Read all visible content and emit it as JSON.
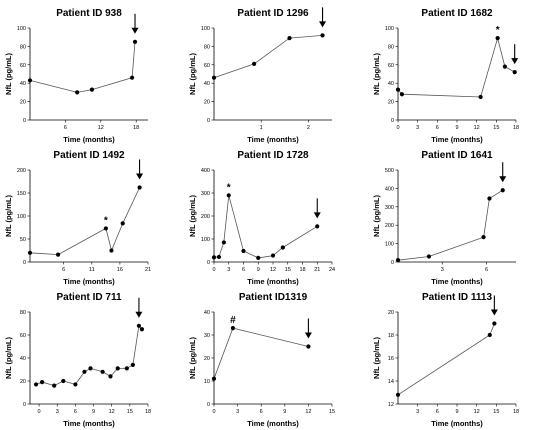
{
  "figure": {
    "panels": [
      {
        "title": "Patient ID 938",
        "xlabel": "Time (months)",
        "ylabel": "NfL (pg/mL)"
      },
      {
        "title": "Patient ID 1296",
        "xlabel": "Time (months)",
        "ylabel": "NfL (pg/mL)"
      },
      {
        "title": "Patient ID 1682",
        "xlabel": "Time (months)",
        "ylabel": "NfL (pg/mL)"
      },
      {
        "title": "Patient ID 1492",
        "xlabel": "Time (months)",
        "ylabel": "NfL (pg/mL)"
      },
      {
        "title": "Patient ID 1728",
        "xlabel": "Time (months)",
        "ylabel": "NfL (pg/mL)"
      },
      {
        "title": "Patient ID 1641",
        "xlabel": "Time (months)",
        "ylabel": "NfL (pg/mL)"
      },
      {
        "title": "Patient ID 711",
        "xlabel": "Time (months)",
        "ylabel": "NfL (pg/mL)"
      },
      {
        "title": "Patient ID1319",
        "xlabel": "Time (months)",
        "ylabel": "NfL (pg/mL)"
      },
      {
        "title": "Patient ID 1113",
        "xlabel": "Time (months)",
        "ylabel": "NfL (pg/mL)"
      }
    ]
  },
  "chart_data": [
    {
      "type": "line",
      "title": "Patient ID 938",
      "xlabel": "Time (months)",
      "ylabel": "NfL (pg/mL)",
      "xlim": [
        0,
        20
      ],
      "ylim": [
        0,
        100
      ],
      "xticks": [
        6,
        12,
        18
      ],
      "yticks": [
        0,
        20,
        40,
        60,
        80,
        100
      ],
      "x": [
        0,
        8,
        10.5,
        17.3,
        17.8
      ],
      "y": [
        43,
        30,
        33,
        46,
        85
      ],
      "arrow_x": 17.8,
      "annotations": []
    },
    {
      "type": "line",
      "title": "Patient ID 1296",
      "xlabel": "Time (months)",
      "ylabel": "NfL (pg/mL)",
      "xlim": [
        0,
        2.5
      ],
      "ylim": [
        0,
        100
      ],
      "xticks": [
        1,
        2
      ],
      "yticks": [
        0,
        20,
        40,
        60,
        80,
        100
      ],
      "x": [
        0,
        0.85,
        1.6,
        2.3
      ],
      "y": [
        46,
        61,
        89,
        92
      ],
      "arrow_x": 2.3,
      "annotations": []
    },
    {
      "type": "line",
      "title": "Patient ID 1682",
      "xlabel": "Time (months)",
      "ylabel": "NfL (pg/mL)",
      "xlim": [
        0,
        18
      ],
      "ylim": [
        0,
        100
      ],
      "xticks": [
        0,
        3,
        6,
        9,
        12,
        15,
        18
      ],
      "yticks": [
        0,
        20,
        40,
        60,
        80,
        100
      ],
      "x": [
        0,
        0.6,
        12.6,
        15.2,
        16.3,
        17.8
      ],
      "y": [
        33,
        28,
        25,
        89,
        58,
        52
      ],
      "arrow_x": 17.8,
      "annotations": [
        {
          "text": "*",
          "x": 15.2
        }
      ]
    },
    {
      "type": "line",
      "title": "Patient ID 1492",
      "xlabel": "Time (months)",
      "ylabel": "NfL (pg/mL)",
      "xlim": [
        0,
        21
      ],
      "ylim": [
        0,
        200
      ],
      "xticks": [
        6,
        11,
        16,
        21
      ],
      "yticks": [
        0,
        50,
        100,
        150,
        200
      ],
      "x": [
        0,
        5,
        13.5,
        14.5,
        16.5,
        19.5
      ],
      "y": [
        20,
        16,
        73,
        25,
        84,
        162
      ],
      "arrow_x": 19.5,
      "annotations": [
        {
          "text": "*",
          "x": 13.5
        }
      ]
    },
    {
      "type": "line",
      "title": "Patient ID 1728",
      "xlabel": "Time (months)",
      "ylabel": "NfL (pg/mL)",
      "xlim": [
        0,
        24
      ],
      "ylim": [
        0,
        400
      ],
      "xticks": [
        0,
        3,
        6,
        9,
        12,
        15,
        18,
        21,
        24
      ],
      "yticks": [
        0,
        100,
        200,
        300,
        400
      ],
      "x": [
        0,
        1,
        2,
        3,
        6,
        9,
        12,
        14,
        21
      ],
      "y": [
        20,
        22,
        85,
        290,
        48,
        18,
        28,
        63,
        155
      ],
      "arrow_x": 21,
      "annotations": [
        {
          "text": "*",
          "x": 3
        }
      ]
    },
    {
      "type": "line",
      "title": "Patient ID 1641",
      "xlabel": "Time (months)",
      "ylabel": "NfL (pg/mL)",
      "xlim": [
        0,
        8
      ],
      "ylim": [
        0,
        500
      ],
      "xticks": [
        3,
        6
      ],
      "yticks": [
        0,
        100,
        200,
        300,
        400,
        500
      ],
      "x": [
        0,
        2.1,
        5.8,
        6.2,
        7.1
      ],
      "y": [
        10,
        30,
        135,
        345,
        390
      ],
      "arrow_x": 7.1,
      "annotations": []
    },
    {
      "type": "line",
      "title": "Patient ID 711",
      "xlabel": "Time (months)",
      "ylabel": "NfL (pg/mL)",
      "xlim": [
        -1.5,
        18
      ],
      "ylim": [
        0,
        80
      ],
      "xticks": [
        0,
        3,
        6,
        9,
        12,
        15,
        18
      ],
      "yticks": [
        0,
        20,
        40,
        60,
        80
      ],
      "x": [
        -0.5,
        0.5,
        2.5,
        4,
        6,
        7.5,
        8.5,
        10.5,
        11.8,
        13,
        14.5,
        15.5,
        16.5,
        17
      ],
      "y": [
        17,
        19,
        16,
        20,
        17,
        28,
        31,
        28,
        24,
        31,
        31,
        34,
        68,
        65
      ],
      "arrow_x": 16.5,
      "annotations": []
    },
    {
      "type": "line",
      "title": "Patient ID1319",
      "xlabel": "Time (months)",
      "ylabel": "NfL (pg/mL)",
      "xlim": [
        0,
        15
      ],
      "ylim": [
        0,
        40
      ],
      "xticks": [
        0,
        3,
        6,
        9,
        12,
        15
      ],
      "yticks": [
        0,
        10,
        20,
        30,
        40
      ],
      "x": [
        0,
        2.4,
        12
      ],
      "y": [
        11,
        33,
        25
      ],
      "arrow_x": 12,
      "annotations": [
        {
          "text": "#",
          "x": 2.4
        }
      ]
    },
    {
      "type": "line",
      "title": "Patient ID 1113",
      "xlabel": "Time (months)",
      "ylabel": "NfL (pg/mL)",
      "xlim": [
        0,
        18
      ],
      "ylim": [
        12,
        20
      ],
      "xticks": [
        3,
        6,
        9,
        12,
        15,
        18
      ],
      "yticks": [
        12,
        14,
        16,
        18,
        20
      ],
      "x": [
        0,
        14,
        14.7
      ],
      "y": [
        12.8,
        18,
        19
      ],
      "arrow_x": 14.7,
      "annotations": []
    }
  ]
}
